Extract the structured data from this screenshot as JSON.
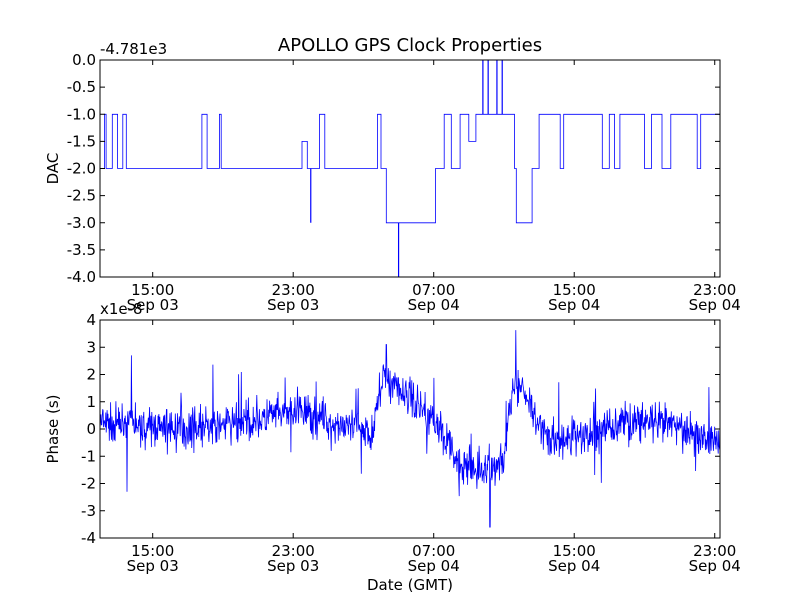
{
  "title": "APOLLO GPS Clock Properties",
  "colors": {
    "line": "#0000ff",
    "axes": "#000000",
    "background": "#ffffff"
  },
  "chart_data": [
    {
      "type": "line",
      "ylabel": "DAC",
      "offset_label": "-4.781e3",
      "ylim": [
        -4.0,
        0.0
      ],
      "y_ticks": [
        "0.0",
        "-0.5",
        "-1.0",
        "-1.5",
        "-2.0",
        "-2.5",
        "-3.0",
        "-3.5",
        "-4.0"
      ],
      "x_tick_labels": [
        [
          "15:00",
          "Sep 03"
        ],
        [
          "23:00",
          "Sep 03"
        ],
        [
          "07:00",
          "Sep 04"
        ],
        [
          "15:00",
          "Sep 04"
        ],
        [
          "23:00",
          "Sep 04"
        ]
      ],
      "x_range_hours": [
        12.0,
        47.3
      ],
      "x_tick_hours": [
        15,
        23,
        31,
        39,
        47
      ],
      "levels": [
        {
          "x_hours": 12.0,
          "y": -2.0
        },
        {
          "x_hours": 12.25,
          "y": -1.0
        },
        {
          "x_hours": 12.35,
          "y": -2.0
        },
        {
          "x_hours": 12.7,
          "y": -1.0
        },
        {
          "x_hours": 13.0,
          "y": -2.0
        },
        {
          "x_hours": 13.3,
          "y": -1.0
        },
        {
          "x_hours": 13.5,
          "y": -2.0
        },
        {
          "x_hours": 17.8,
          "y": -1.0
        },
        {
          "x_hours": 18.1,
          "y": -2.0
        },
        {
          "x_hours": 18.8,
          "y": -1.0
        },
        {
          "x_hours": 18.9,
          "y": -2.0
        },
        {
          "x_hours": 23.0,
          "y": -2.0
        },
        {
          "x_hours": 23.5,
          "y": -1.5
        },
        {
          "x_hours": 23.8,
          "y": -2.0
        },
        {
          "x_hours": 24.5,
          "y": -1.0
        },
        {
          "x_hours": 24.8,
          "y": -2.0
        },
        {
          "x_hours": 27.8,
          "y": -1.0
        },
        {
          "x_hours": 28.0,
          "y": -2.0
        },
        {
          "x_hours": 28.3,
          "y": -3.0
        },
        {
          "x_hours": 31.0,
          "y": -3.0
        },
        {
          "x_hours": 31.1,
          "y": -2.0
        },
        {
          "x_hours": 31.6,
          "y": -1.0
        },
        {
          "x_hours": 32.0,
          "y": -2.0
        },
        {
          "x_hours": 32.5,
          "y": -1.0
        },
        {
          "x_hours": 33.0,
          "y": -1.5
        },
        {
          "x_hours": 33.4,
          "y": -1.0
        },
        {
          "x_hours": 35.1,
          "y": -1.0
        },
        {
          "x_hours": 35.6,
          "y": -2.0
        },
        {
          "x_hours": 35.7,
          "y": -3.0
        },
        {
          "x_hours": 36.5,
          "y": -3.0
        },
        {
          "x_hours": 36.6,
          "y": -2.0
        },
        {
          "x_hours": 37.0,
          "y": -1.0
        },
        {
          "x_hours": 38.0,
          "y": -1.0
        },
        {
          "x_hours": 38.2,
          "y": -2.0
        },
        {
          "x_hours": 38.4,
          "y": -1.0
        },
        {
          "x_hours": 40.3,
          "y": -1.0
        },
        {
          "x_hours": 40.6,
          "y": -2.0
        },
        {
          "x_hours": 41.0,
          "y": -1.0
        },
        {
          "x_hours": 41.3,
          "y": -2.0
        },
        {
          "x_hours": 41.6,
          "y": -1.0
        },
        {
          "x_hours": 43.0,
          "y": -2.0
        },
        {
          "x_hours": 43.4,
          "y": -1.0
        },
        {
          "x_hours": 44.0,
          "y": -2.0
        },
        {
          "x_hours": 44.5,
          "y": -1.0
        },
        {
          "x_hours": 46.0,
          "y": -2.0
        },
        {
          "x_hours": 46.2,
          "y": -1.0
        },
        {
          "x_hours": 47.3,
          "y": -1.0
        }
      ],
      "spikes": [
        {
          "x_hours": 24.0,
          "from": -2.0,
          "to": -3.0
        },
        {
          "x_hours": 29.0,
          "from": -3.0,
          "to": -4.0
        },
        {
          "x_hours": 33.8,
          "from": -1.0,
          "to": 0.0
        },
        {
          "x_hours": 34.1,
          "from": -1.0,
          "to": 0.0
        },
        {
          "x_hours": 34.6,
          "from": -1.0,
          "to": 0.0
        },
        {
          "x_hours": 34.9,
          "from": -1.0,
          "to": 0.0
        }
      ]
    },
    {
      "type": "line",
      "ylabel": "Phase (s)",
      "xlabel": "Date (GMT)",
      "offset_label": "x1e-8",
      "ylim": [
        -4,
        4
      ],
      "y_ticks": [
        "4",
        "3",
        "2",
        "1",
        "0",
        "-1",
        "-2",
        "-3",
        "-4"
      ],
      "x_tick_labels": [
        [
          "15:00",
          "Sep 03"
        ],
        [
          "23:00",
          "Sep 03"
        ],
        [
          "07:00",
          "Sep 04"
        ],
        [
          "15:00",
          "Sep 04"
        ],
        [
          "23:00",
          "Sep 04"
        ]
      ],
      "x_range_hours": [
        12.0,
        47.3
      ],
      "x_tick_hours": [
        15,
        23,
        31,
        39,
        47
      ],
      "trend": [
        {
          "x_hours": 12.0,
          "y": 0.2
        },
        {
          "x_hours": 14.0,
          "y": 0.1
        },
        {
          "x_hours": 17.0,
          "y": 0.0
        },
        {
          "x_hours": 20.0,
          "y": 0.2
        },
        {
          "x_hours": 22.0,
          "y": 0.5
        },
        {
          "x_hours": 24.0,
          "y": 0.6
        },
        {
          "x_hours": 26.0,
          "y": 0.0
        },
        {
          "x_hours": 27.5,
          "y": 0.0
        },
        {
          "x_hours": 28.2,
          "y": 2.0
        },
        {
          "x_hours": 30.0,
          "y": 1.0
        },
        {
          "x_hours": 31.5,
          "y": 0.0
        },
        {
          "x_hours": 32.5,
          "y": -1.5
        },
        {
          "x_hours": 34.0,
          "y": -1.5
        },
        {
          "x_hours": 35.0,
          "y": -1.2
        },
        {
          "x_hours": 35.5,
          "y": 1.8
        },
        {
          "x_hours": 36.5,
          "y": 1.0
        },
        {
          "x_hours": 37.5,
          "y": -0.5
        },
        {
          "x_hours": 40.0,
          "y": -0.2
        },
        {
          "x_hours": 42.0,
          "y": 0.3
        },
        {
          "x_hours": 45.0,
          "y": 0.1
        },
        {
          "x_hours": 47.3,
          "y": -0.5
        }
      ],
      "noise_amplitude": 0.5,
      "peaks": [
        {
          "x_hours": 28.3,
          "y": 3.1
        },
        {
          "x_hours": 34.2,
          "y": -3.6
        },
        {
          "x_hours": 13.8,
          "y": 2.7
        }
      ]
    }
  ]
}
